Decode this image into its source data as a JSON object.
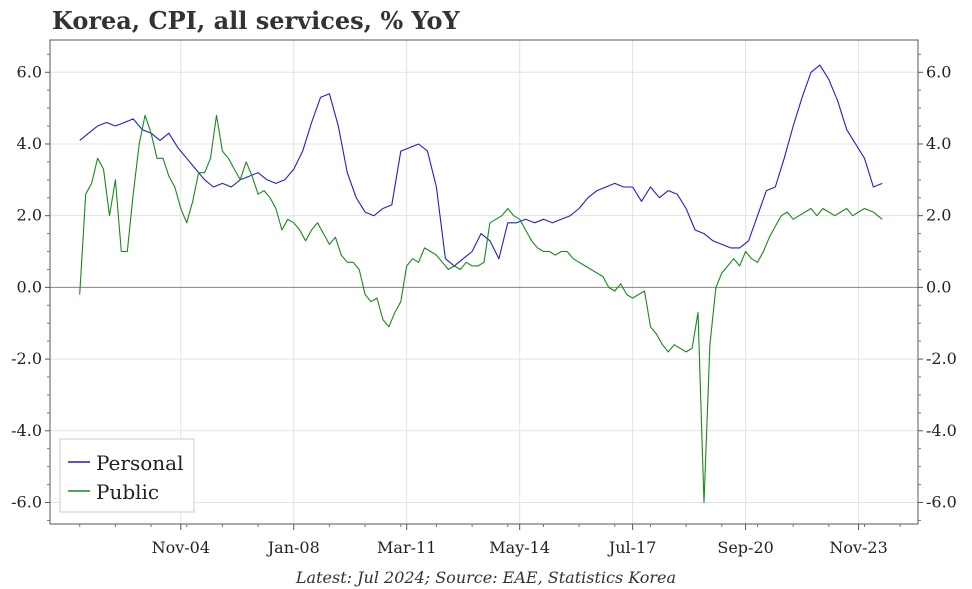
{
  "chart_data": {
    "type": "line",
    "title": "Korea, CPI, all services, % YoY",
    "footnote": "Latest: Jul 2024; Source: EAE, Statistics Korea",
    "ylim": [
      -6.6,
      6.9
    ],
    "xlim": [
      "2001-03",
      "2025-07"
    ],
    "y_ticks": [
      -6,
      -4,
      -2,
      0,
      2,
      4,
      6
    ],
    "y_tick_labels": [
      "-6.0",
      "-4.0",
      "-2.0",
      "0.0",
      "2.0",
      "4.0",
      "6.0"
    ],
    "x_ticks": [
      "2004-11",
      "2008-01",
      "2011-03",
      "2014-05",
      "2017-07",
      "2020-09",
      "2023-11"
    ],
    "x_tick_labels": [
      "Nov-04",
      "Jan-08",
      "Mar-11",
      "May-14",
      "Jul-17",
      "Sep-20",
      "Nov-23"
    ],
    "grid": true,
    "legend_position": "bottom-left",
    "colors": {
      "Personal": "#1f1fcf",
      "Public": "#1a8a1a",
      "zero_line": "#888888",
      "grid": "#e3e3e3"
    },
    "series": [
      {
        "name": "Personal",
        "points": [
          [
            "2002-01",
            4.1
          ],
          [
            "2002-04",
            4.3
          ],
          [
            "2002-07",
            4.5
          ],
          [
            "2002-10",
            4.6
          ],
          [
            "2003-01",
            4.5
          ],
          [
            "2003-04",
            4.6
          ],
          [
            "2003-07",
            4.7
          ],
          [
            "2003-10",
            4.4
          ],
          [
            "2004-01",
            4.3
          ],
          [
            "2004-04",
            4.1
          ],
          [
            "2004-07",
            4.3
          ],
          [
            "2004-10",
            3.9
          ],
          [
            "2005-01",
            3.6
          ],
          [
            "2005-04",
            3.3
          ],
          [
            "2005-07",
            3.0
          ],
          [
            "2005-10",
            2.8
          ],
          [
            "2006-01",
            2.9
          ],
          [
            "2006-04",
            2.8
          ],
          [
            "2006-07",
            3.0
          ],
          [
            "2006-10",
            3.1
          ],
          [
            "2007-01",
            3.2
          ],
          [
            "2007-04",
            3.0
          ],
          [
            "2007-07",
            2.9
          ],
          [
            "2007-10",
            3.0
          ],
          [
            "2008-01",
            3.3
          ],
          [
            "2008-04",
            3.8
          ],
          [
            "2008-07",
            4.6
          ],
          [
            "2008-10",
            5.3
          ],
          [
            "2009-01",
            5.4
          ],
          [
            "2009-04",
            4.5
          ],
          [
            "2009-07",
            3.2
          ],
          [
            "2009-10",
            2.5
          ],
          [
            "2010-01",
            2.1
          ],
          [
            "2010-04",
            2.0
          ],
          [
            "2010-07",
            2.2
          ],
          [
            "2010-10",
            2.3
          ],
          [
            "2011-01",
            3.8
          ],
          [
            "2011-04",
            3.9
          ],
          [
            "2011-07",
            4.0
          ],
          [
            "2011-10",
            3.8
          ],
          [
            "2012-01",
            2.8
          ],
          [
            "2012-04",
            0.8
          ],
          [
            "2012-07",
            0.6
          ],
          [
            "2012-10",
            0.8
          ],
          [
            "2013-01",
            1.0
          ],
          [
            "2013-04",
            1.5
          ],
          [
            "2013-07",
            1.3
          ],
          [
            "2013-10",
            0.8
          ],
          [
            "2014-01",
            1.8
          ],
          [
            "2014-04",
            1.8
          ],
          [
            "2014-07",
            1.9
          ],
          [
            "2014-10",
            1.8
          ],
          [
            "2015-01",
            1.9
          ],
          [
            "2015-04",
            1.8
          ],
          [
            "2015-07",
            1.9
          ],
          [
            "2015-10",
            2.0
          ],
          [
            "2016-01",
            2.2
          ],
          [
            "2016-04",
            2.5
          ],
          [
            "2016-07",
            2.7
          ],
          [
            "2016-10",
            2.8
          ],
          [
            "2017-01",
            2.9
          ],
          [
            "2017-04",
            2.8
          ],
          [
            "2017-07",
            2.8
          ],
          [
            "2017-10",
            2.4
          ],
          [
            "2018-01",
            2.8
          ],
          [
            "2018-04",
            2.5
          ],
          [
            "2018-07",
            2.7
          ],
          [
            "2018-10",
            2.6
          ],
          [
            "2019-01",
            2.2
          ],
          [
            "2019-04",
            1.6
          ],
          [
            "2019-07",
            1.5
          ],
          [
            "2019-10",
            1.3
          ],
          [
            "2020-01",
            1.2
          ],
          [
            "2020-04",
            1.1
          ],
          [
            "2020-07",
            1.1
          ],
          [
            "2020-10",
            1.3
          ],
          [
            "2021-01",
            2.0
          ],
          [
            "2021-04",
            2.7
          ],
          [
            "2021-07",
            2.8
          ],
          [
            "2021-10",
            3.6
          ],
          [
            "2022-01",
            4.5
          ],
          [
            "2022-04",
            5.3
          ],
          [
            "2022-07",
            6.0
          ],
          [
            "2022-10",
            6.2
          ],
          [
            "2023-01",
            5.8
          ],
          [
            "2023-04",
            5.2
          ],
          [
            "2023-07",
            4.4
          ],
          [
            "2023-10",
            4.0
          ],
          [
            "2024-01",
            3.6
          ],
          [
            "2024-04",
            2.8
          ],
          [
            "2024-07",
            2.9
          ]
        ]
      },
      {
        "name": "Public",
        "points": [
          [
            "2002-01",
            -0.2
          ],
          [
            "2002-03",
            2.6
          ],
          [
            "2002-05",
            2.9
          ],
          [
            "2002-07",
            3.6
          ],
          [
            "2002-09",
            3.3
          ],
          [
            "2002-11",
            2.0
          ],
          [
            "2003-01",
            3.0
          ],
          [
            "2003-03",
            1.0
          ],
          [
            "2003-05",
            1.0
          ],
          [
            "2003-07",
            2.6
          ],
          [
            "2003-09",
            4.0
          ],
          [
            "2003-11",
            4.8
          ],
          [
            "2004-01",
            4.3
          ],
          [
            "2004-03",
            3.6
          ],
          [
            "2004-05",
            3.6
          ],
          [
            "2004-07",
            3.1
          ],
          [
            "2004-09",
            2.8
          ],
          [
            "2004-11",
            2.2
          ],
          [
            "2005-01",
            1.8
          ],
          [
            "2005-03",
            2.4
          ],
          [
            "2005-05",
            3.2
          ],
          [
            "2005-07",
            3.2
          ],
          [
            "2005-09",
            3.6
          ],
          [
            "2005-11",
            4.8
          ],
          [
            "2006-01",
            3.8
          ],
          [
            "2006-03",
            3.6
          ],
          [
            "2006-05",
            3.3
          ],
          [
            "2006-07",
            3.0
          ],
          [
            "2006-09",
            3.5
          ],
          [
            "2006-11",
            3.1
          ],
          [
            "2007-01",
            2.6
          ],
          [
            "2007-03",
            2.7
          ],
          [
            "2007-05",
            2.5
          ],
          [
            "2007-07",
            2.2
          ],
          [
            "2007-09",
            1.6
          ],
          [
            "2007-11",
            1.9
          ],
          [
            "2008-01",
            1.8
          ],
          [
            "2008-03",
            1.6
          ],
          [
            "2008-05",
            1.3
          ],
          [
            "2008-07",
            1.6
          ],
          [
            "2008-09",
            1.8
          ],
          [
            "2008-11",
            1.5
          ],
          [
            "2009-01",
            1.2
          ],
          [
            "2009-03",
            1.4
          ],
          [
            "2009-05",
            0.9
          ],
          [
            "2009-07",
            0.7
          ],
          [
            "2009-09",
            0.7
          ],
          [
            "2009-11",
            0.5
          ],
          [
            "2010-01",
            -0.2
          ],
          [
            "2010-03",
            -0.4
          ],
          [
            "2010-05",
            -0.3
          ],
          [
            "2010-07",
            -0.9
          ],
          [
            "2010-09",
            -1.1
          ],
          [
            "2010-11",
            -0.7
          ],
          [
            "2011-01",
            -0.4
          ],
          [
            "2011-03",
            0.6
          ],
          [
            "2011-05",
            0.8
          ],
          [
            "2011-07",
            0.7
          ],
          [
            "2011-09",
            1.1
          ],
          [
            "2011-11",
            1.0
          ],
          [
            "2012-01",
            0.9
          ],
          [
            "2012-03",
            0.7
          ],
          [
            "2012-05",
            0.5
          ],
          [
            "2012-07",
            0.6
          ],
          [
            "2012-09",
            0.5
          ],
          [
            "2012-11",
            0.7
          ],
          [
            "2013-01",
            0.6
          ],
          [
            "2013-03",
            0.6
          ],
          [
            "2013-05",
            0.7
          ],
          [
            "2013-07",
            1.8
          ],
          [
            "2013-09",
            1.9
          ],
          [
            "2013-11",
            2.0
          ],
          [
            "2014-01",
            2.2
          ],
          [
            "2014-03",
            2.0
          ],
          [
            "2014-05",
            1.9
          ],
          [
            "2014-07",
            1.6
          ],
          [
            "2014-09",
            1.3
          ],
          [
            "2014-11",
            1.1
          ],
          [
            "2015-01",
            1.0
          ],
          [
            "2015-03",
            1.0
          ],
          [
            "2015-05",
            0.9
          ],
          [
            "2015-07",
            1.0
          ],
          [
            "2015-09",
            1.0
          ],
          [
            "2015-11",
            0.8
          ],
          [
            "2016-01",
            0.7
          ],
          [
            "2016-03",
            0.6
          ],
          [
            "2016-05",
            0.5
          ],
          [
            "2016-07",
            0.4
          ],
          [
            "2016-09",
            0.3
          ],
          [
            "2016-11",
            0.0
          ],
          [
            "2017-01",
            -0.1
          ],
          [
            "2017-03",
            0.1
          ],
          [
            "2017-05",
            -0.2
          ],
          [
            "2017-07",
            -0.3
          ],
          [
            "2017-09",
            -0.2
          ],
          [
            "2017-11",
            -0.1
          ],
          [
            "2018-01",
            -1.1
          ],
          [
            "2018-03",
            -1.3
          ],
          [
            "2018-05",
            -1.6
          ],
          [
            "2018-07",
            -1.8
          ],
          [
            "2018-09",
            -1.6
          ],
          [
            "2018-11",
            -1.7
          ],
          [
            "2019-01",
            -1.8
          ],
          [
            "2019-03",
            -1.7
          ],
          [
            "2019-05",
            -0.7
          ],
          [
            "2019-07",
            -6.0
          ],
          [
            "2019-09",
            -1.6
          ],
          [
            "2019-11",
            0.0
          ],
          [
            "2020-01",
            0.4
          ],
          [
            "2020-03",
            0.6
          ],
          [
            "2020-05",
            0.8
          ],
          [
            "2020-07",
            0.6
          ],
          [
            "2020-09",
            1.0
          ],
          [
            "2020-11",
            0.8
          ],
          [
            "2021-01",
            0.7
          ],
          [
            "2021-03",
            1.0
          ],
          [
            "2021-05",
            1.4
          ],
          [
            "2021-07",
            1.7
          ],
          [
            "2021-09",
            2.0
          ],
          [
            "2021-11",
            2.1
          ],
          [
            "2022-01",
            1.9
          ],
          [
            "2022-03",
            2.0
          ],
          [
            "2022-05",
            2.1
          ],
          [
            "2022-07",
            2.2
          ],
          [
            "2022-09",
            2.0
          ],
          [
            "2022-11",
            2.2
          ],
          [
            "2023-01",
            2.1
          ],
          [
            "2023-03",
            2.0
          ],
          [
            "2023-05",
            2.1
          ],
          [
            "2023-07",
            2.2
          ],
          [
            "2023-09",
            2.0
          ],
          [
            "2023-11",
            2.1
          ],
          [
            "2024-01",
            2.2
          ],
          [
            "2024-04",
            2.1
          ],
          [
            "2024-07",
            1.9
          ]
        ]
      }
    ]
  }
}
